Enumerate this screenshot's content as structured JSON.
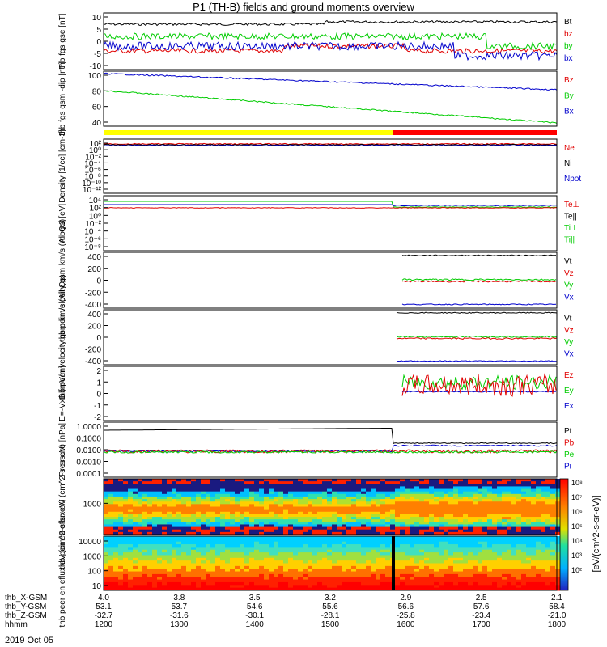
{
  "title": "P1 (TH-B) fields and ground moments overview",
  "colors": {
    "black": "#000000",
    "red": "#e00000",
    "green": "#00cc00",
    "blue": "#0000cc",
    "yellow": "#ffff00",
    "barred": "#ff0000"
  },
  "time_ticks": [
    "1200",
    "1300",
    "1400",
    "1500",
    "1600",
    "1700",
    "1800"
  ],
  "orbit_rows": [
    {
      "label": "thb_X-GSM",
      "values": [
        "4.0",
        "3.8",
        "3.5",
        "3.2",
        "2.9",
        "2.5",
        "2.1"
      ]
    },
    {
      "label": "thb_Y-GSM",
      "values": [
        "53.1",
        "53.7",
        "54.6",
        "55.6",
        "56.6",
        "57.6",
        "58.4"
      ]
    },
    {
      "label": "thb_Z-GSM",
      "values": [
        "-32.7",
        "-31.6",
        "-30.1",
        "-28.1",
        "-25.8",
        "-23.4",
        "-21.0"
      ]
    },
    {
      "label": "hhmm",
      "values": [
        "1200",
        "1300",
        "1400",
        "1500",
        "1600",
        "1700",
        "1800"
      ]
    }
  ],
  "date_label": "2019 Oct 05",
  "colorbar_label": "[eV/(cm^2-s-sr-eV)]",
  "colorbar_ticks": [
    "10⁸",
    "10⁷",
    "10⁶",
    "10⁵",
    "10⁴",
    "10³",
    "10²"
  ],
  "chart_data": [
    {
      "type": "line",
      "ylabel": "thb fgs gse [nT]",
      "ylim": [
        -10,
        10
      ],
      "yticks": [
        "10",
        "5",
        "0",
        "-5",
        "-10"
      ],
      "series": [
        {
          "name": "Bt",
          "color": "black"
        },
        {
          "name": "bz",
          "color": "red"
        },
        {
          "name": "by",
          "color": "green"
        },
        {
          "name": "bx",
          "color": "blue"
        }
      ]
    },
    {
      "type": "line",
      "ylabel": "thb fgs gsm -dip [nT]",
      "ylim": [
        20,
        105
      ],
      "yticks": [
        "100",
        "80",
        "60",
        "40"
      ],
      "series": [
        {
          "name": "Bz",
          "color": "red"
        },
        {
          "name": "By",
          "color": "green"
        },
        {
          "name": "Bx",
          "color": "blue"
        }
      ]
    },
    {
      "type": "line",
      "ylabel": "Density [1/cc] [cm-3]",
      "scale": "log",
      "yticks": [
        "10²",
        "10⁰",
        "10⁻²",
        "10⁻⁴",
        "10⁻⁶",
        "10⁻⁸",
        "10⁻¹⁰",
        "10⁻¹²"
      ],
      "series": [
        {
          "name": "Ne",
          "color": "red"
        },
        {
          "name": "Ni",
          "color": "black"
        },
        {
          "name": "Npot",
          "color": "blue"
        }
      ]
    },
    {
      "type": "line",
      "ylabel": "moqt3 [eV]",
      "scale": "log",
      "yticks": [
        "10⁴",
        "10²",
        "10⁰",
        "10⁻²",
        "10⁻⁴",
        "10⁻⁶",
        "10⁻⁸"
      ],
      "series": [
        {
          "name": "Te⊥",
          "color": "red"
        },
        {
          "name": "Te||",
          "color": "black"
        },
        {
          "name": "Ti⊥",
          "color": "green"
        },
        {
          "name": "Ti||",
          "color": "green"
        }
      ]
    },
    {
      "type": "line",
      "ylabel": "thb peir velocity gsm km/s (All Qs)",
      "ylim": [
        -450,
        450
      ],
      "yticks": [
        "400",
        "200",
        "0",
        "-200",
        "-400"
      ],
      "series": [
        {
          "name": "Vt",
          "color": "black"
        },
        {
          "name": "Vz",
          "color": "red"
        },
        {
          "name": "Vy",
          "color": "green"
        },
        {
          "name": "Vx",
          "color": "blue"
        }
      ]
    },
    {
      "type": "line",
      "ylabel": "thb peer velocity gsm km/s (All Qs)",
      "ylim": [
        -450,
        450
      ],
      "yticks": [
        "400",
        "200",
        "0",
        "-200",
        "-400"
      ],
      "series": [
        {
          "name": "Vt",
          "color": "black"
        },
        {
          "name": "Vz",
          "color": "red"
        },
        {
          "name": "Vy",
          "color": "green"
        },
        {
          "name": "Vx",
          "color": "blue"
        }
      ]
    },
    {
      "type": "line",
      "ylabel": "E=-VxB [mV/m]",
      "ylim": [
        -3,
        3
      ],
      "yticks": [
        "2",
        "1",
        "0",
        "-1",
        "-2"
      ],
      "series": [
        {
          "name": "Ez",
          "color": "red"
        },
        {
          "name": "Ey",
          "color": "green"
        },
        {
          "name": "Ex",
          "color": "blue"
        }
      ]
    },
    {
      "type": "line",
      "ylabel": "Pressure [nPa]",
      "scale": "log",
      "yticks": [
        "1.0000",
        "0.1000",
        "0.0100",
        "0.0010",
        "0.0001"
      ],
      "series": [
        {
          "name": "Pt",
          "color": "black"
        },
        {
          "name": "Pb",
          "color": "red"
        },
        {
          "name": "Pe",
          "color": "green"
        },
        {
          "name": "Pi",
          "color": "blue"
        }
      ]
    },
    {
      "type": "heatmap",
      "ylabel": "thb peir en eflux eV (cm^2-s-sr-eV)",
      "yticks": [
        "1000"
      ]
    },
    {
      "type": "heatmap",
      "ylabel": "thb peer en eflux eV (cm^2-s-sr-eV)",
      "yticks": [
        "10000",
        "1000",
        "100",
        "10"
      ]
    }
  ]
}
